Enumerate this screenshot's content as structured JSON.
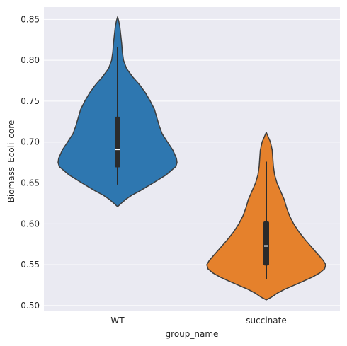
{
  "chart_data": {
    "type": "violin",
    "title": "",
    "xlabel": "group_name",
    "ylabel": "Biomass_Ecoli_core",
    "ylim": [
      0.493,
      0.865
    ],
    "yticks": [
      "0.50",
      "0.55",
      "0.60",
      "0.65",
      "0.70",
      "0.75",
      "0.80",
      "0.85"
    ],
    "categories": [
      "WT",
      "succinate"
    ],
    "colors": {
      "WT": "#2e77b0",
      "succinate": "#e5812c",
      "background": "#eaeaf2",
      "grid": "#ffffff",
      "outline": "#3d3d3d",
      "box": "#2b2b2b",
      "median": "#ffffff"
    },
    "series": [
      {
        "name": "WT",
        "stats": {
          "min": 0.648,
          "q1": 0.669,
          "median": 0.691,
          "q3": 0.731,
          "max": 0.816
        },
        "kde_range": [
          0.621,
          0.853
        ],
        "density": [
          [
            0.853,
            0.0
          ],
          [
            0.848,
            0.02
          ],
          [
            0.84,
            0.04
          ],
          [
            0.83,
            0.055
          ],
          [
            0.82,
            0.07
          ],
          [
            0.81,
            0.08
          ],
          [
            0.8,
            0.1
          ],
          [
            0.79,
            0.15
          ],
          [
            0.78,
            0.25
          ],
          [
            0.77,
            0.37
          ],
          [
            0.76,
            0.47
          ],
          [
            0.75,
            0.55
          ],
          [
            0.74,
            0.62
          ],
          [
            0.73,
            0.66
          ],
          [
            0.72,
            0.7
          ],
          [
            0.71,
            0.75
          ],
          [
            0.7,
            0.84
          ],
          [
            0.69,
            0.93
          ],
          [
            0.68,
            0.99
          ],
          [
            0.675,
            1.0
          ],
          [
            0.67,
            0.98
          ],
          [
            0.66,
            0.82
          ],
          [
            0.65,
            0.6
          ],
          [
            0.64,
            0.37
          ],
          [
            0.635,
            0.24
          ],
          [
            0.63,
            0.14
          ],
          [
            0.625,
            0.06
          ],
          [
            0.621,
            0.0
          ]
        ]
      },
      {
        "name": "succinate",
        "stats": {
          "min": 0.532,
          "q1": 0.549,
          "median": 0.573,
          "q3": 0.603,
          "max": 0.676
        },
        "kde_range": [
          0.507,
          0.712
        ],
        "density": [
          [
            0.712,
            0.0
          ],
          [
            0.705,
            0.04
          ],
          [
            0.7,
            0.07
          ],
          [
            0.69,
            0.1
          ],
          [
            0.68,
            0.11
          ],
          [
            0.67,
            0.12
          ],
          [
            0.66,
            0.14
          ],
          [
            0.65,
            0.18
          ],
          [
            0.64,
            0.24
          ],
          [
            0.63,
            0.3
          ],
          [
            0.62,
            0.34
          ],
          [
            0.61,
            0.39
          ],
          [
            0.6,
            0.46
          ],
          [
            0.59,
            0.55
          ],
          [
            0.58,
            0.66
          ],
          [
            0.57,
            0.78
          ],
          [
            0.56,
            0.9
          ],
          [
            0.555,
            0.96
          ],
          [
            0.55,
            1.0
          ],
          [
            0.545,
            0.98
          ],
          [
            0.54,
            0.9
          ],
          [
            0.535,
            0.78
          ],
          [
            0.53,
            0.63
          ],
          [
            0.525,
            0.47
          ],
          [
            0.52,
            0.31
          ],
          [
            0.515,
            0.18
          ],
          [
            0.51,
            0.08
          ],
          [
            0.507,
            0.0
          ]
        ]
      }
    ]
  }
}
